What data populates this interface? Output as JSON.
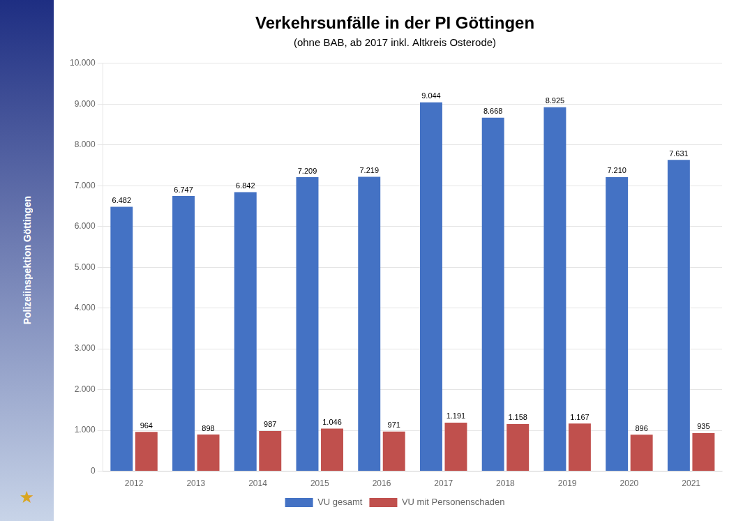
{
  "chart_data": {
    "type": "bar",
    "title": "Verkehrsunfälle in der PI Göttingen",
    "subtitle": "(ohne BAB, ab 2017 inkl. Altkreis Osterode)",
    "annotations": [
      "Polizeiinspektion Göttingen",
      "★"
    ],
    "categories": [
      "2012",
      "2013",
      "2014",
      "2015",
      "2016",
      "2017",
      "2018",
      "2019",
      "2020",
      "2021"
    ],
    "series": [
      {
        "name": "VU gesamt",
        "color": "#4472C4",
        "values": [
          6482,
          6747,
          6842,
          7209,
          7219,
          9044,
          8668,
          8925,
          7210,
          7631
        ],
        "value_labels": [
          "6.482",
          "6.747",
          "6.842",
          "7.209",
          "7.219",
          "9.044",
          "8.668",
          "8.925",
          "7.210",
          "7.631"
        ]
      },
      {
        "name": "VU mit Personenschaden",
        "color": "#C0504D",
        "values": [
          964,
          898,
          987,
          1046,
          971,
          1191,
          1158,
          1167,
          896,
          935
        ],
        "value_labels": [
          "964",
          "898",
          "987",
          "1.046",
          "971",
          "1.191",
          "1.158",
          "1.167",
          "896",
          "935"
        ]
      }
    ],
    "ylim": [
      0,
      10000
    ],
    "yticks": [
      0,
      {
        "value": 1000,
        "label": "1.000"
      },
      {
        "value": 2000,
        "label": "2.000"
      },
      {
        "value": 3000,
        "label": "3.000"
      },
      {
        "value": 4000,
        "label": "4.000"
      },
      {
        "value": 5000,
        "label": "5.000"
      },
      {
        "value": 6000,
        "label": "6.000"
      },
      {
        "value": 7000,
        "label": "7.000"
      },
      {
        "value": 8000,
        "label": "8.000"
      },
      {
        "value": 9000,
        "label": "9.000"
      },
      {
        "value": 10000,
        "label": "10.000"
      }
    ],
    "grid": true,
    "legend": "bottom",
    "data_labels": true
  }
}
